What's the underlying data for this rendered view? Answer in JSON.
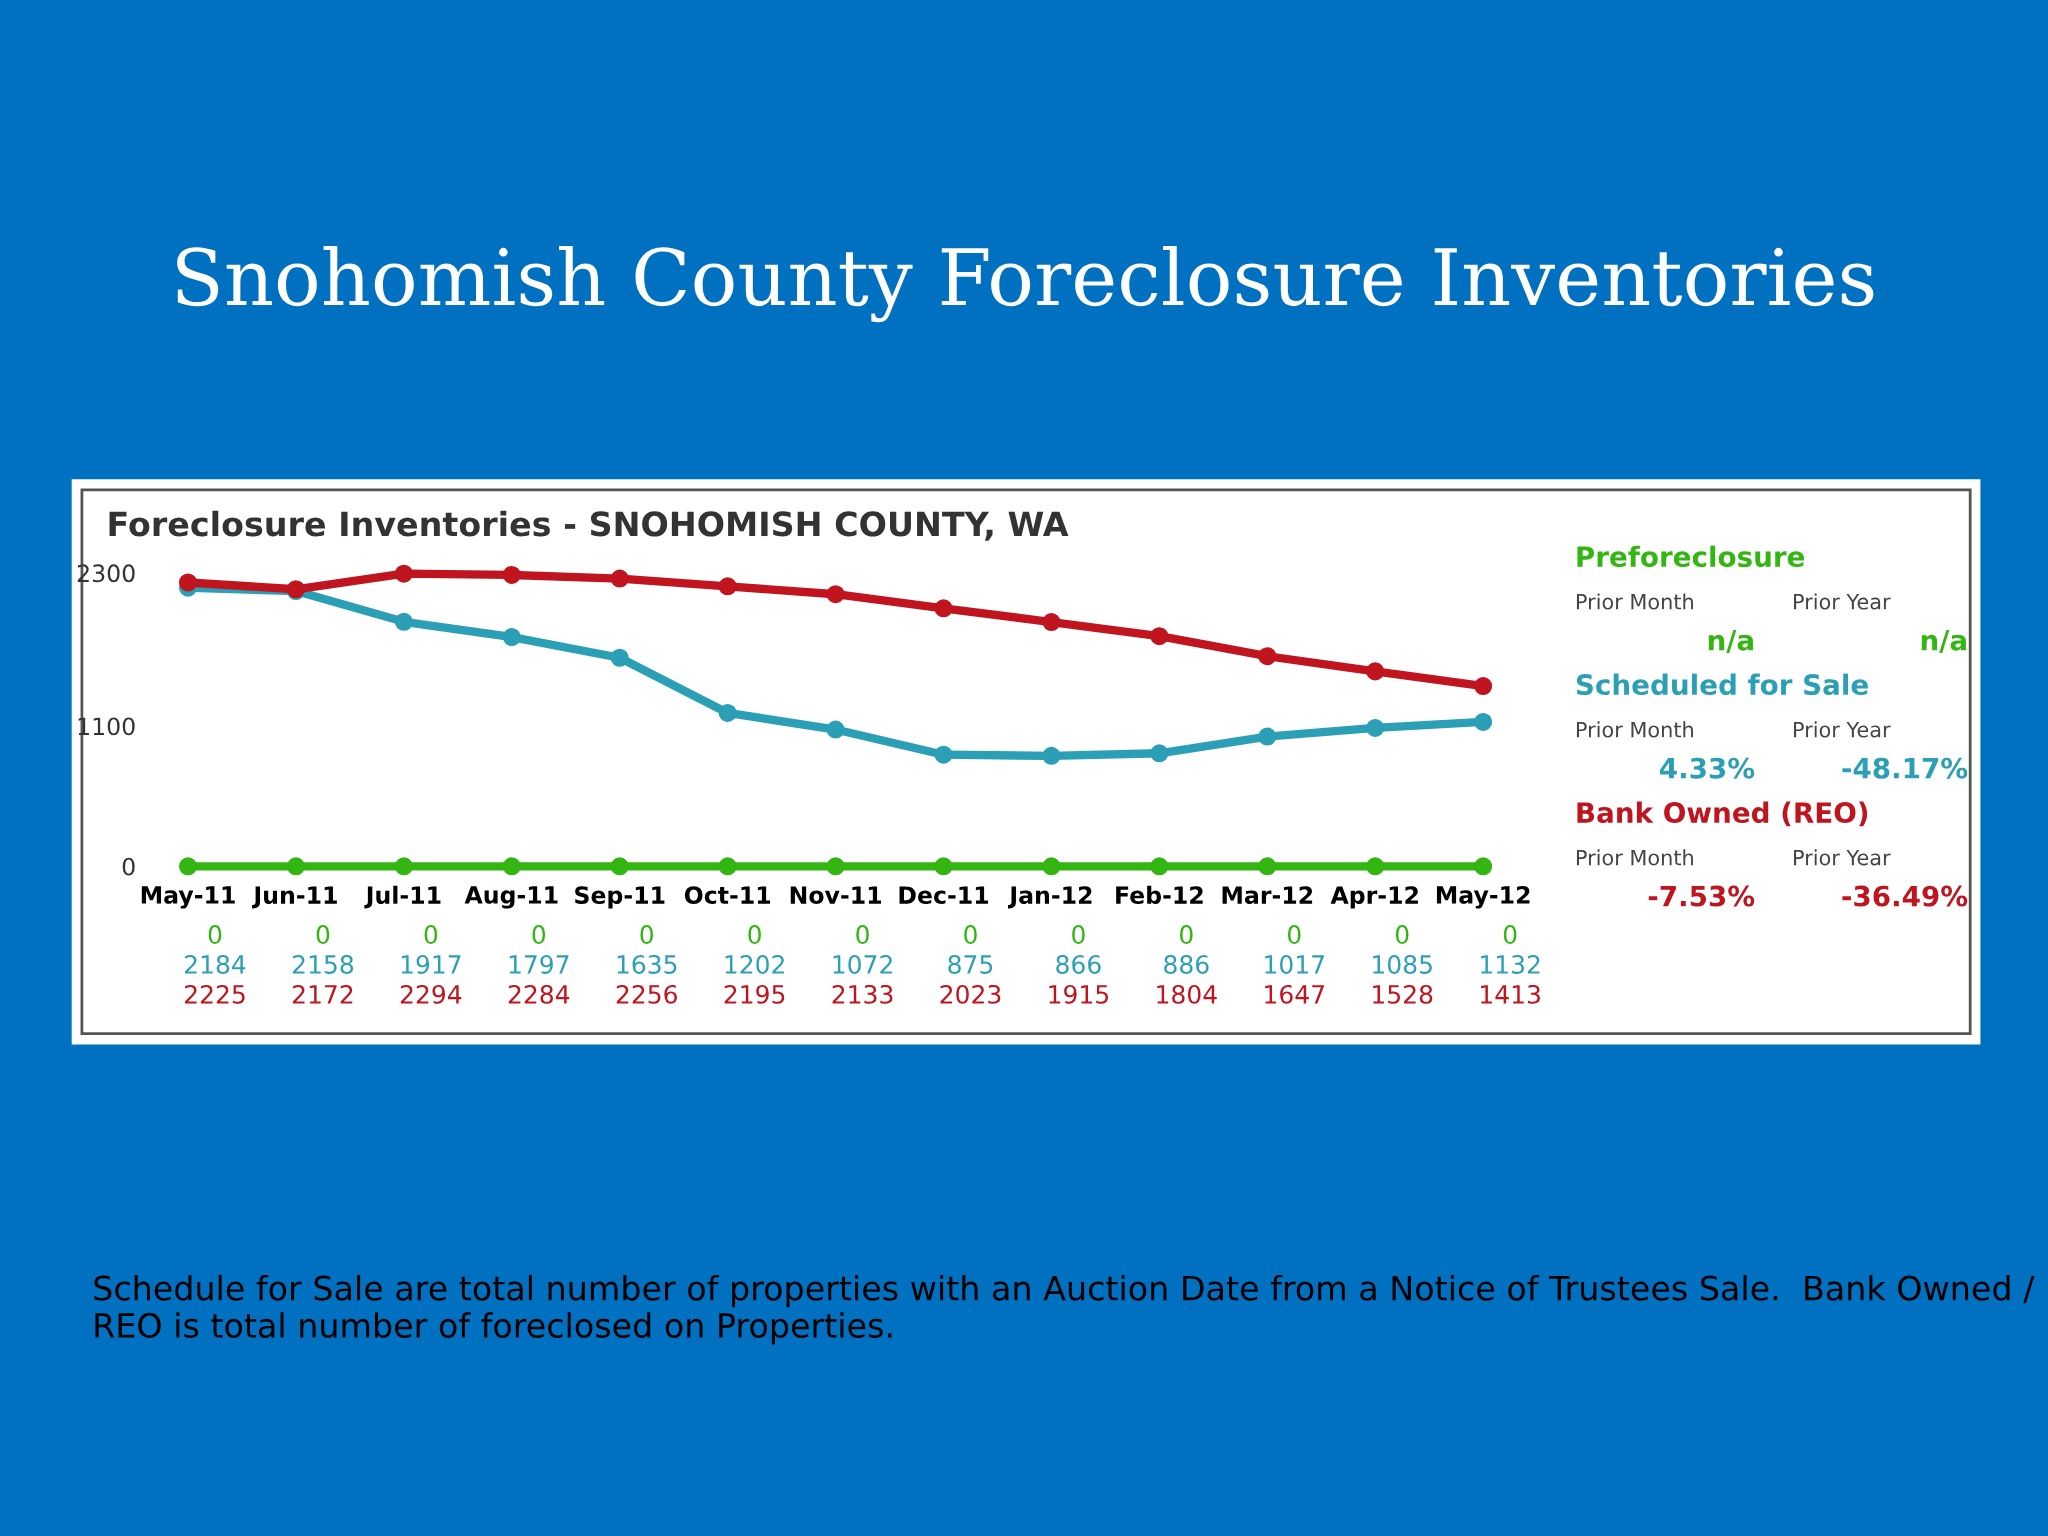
{
  "chart_data": [
    {
      "type": "line",
      "title": "Snohomish County Foreclosure Inventories",
      "subtitle": "Foreclosure Inventories - SNOHOMISH COUNTY, WA",
      "categories": [
        "May-11",
        "Jun-11",
        "Jul-11",
        "Aug-11",
        "Sep-11",
        "Oct-11",
        "Nov-11",
        "Dec-11",
        "Jan-12",
        "Feb-12",
        "Mar-12",
        "Apr-12",
        "May-12"
      ],
      "series": [
        {
          "name": "Preforeclosure",
          "color": "#33b512",
          "values": [
            0,
            0,
            0,
            0,
            0,
            0,
            0,
            0,
            0,
            0,
            0,
            0,
            0
          ]
        },
        {
          "name": "Scheduled for Sale",
          "color": "#2a9fb5",
          "values": [
            2184,
            2158,
            1917,
            1797,
            1635,
            1202,
            1072,
            875,
            866,
            886,
            1017,
            1085,
            1132
          ]
        },
        {
          "name": "Bank Owned (REO)",
          "color": "#c0141e",
          "values": [
            2225,
            2172,
            2294,
            2284,
            2256,
            2195,
            2133,
            2023,
            1915,
            1804,
            1647,
            1528,
            1413
          ]
        }
      ],
      "ylim": [
        0,
        2300
      ],
      "yticks": [
        0,
        1100,
        2300
      ],
      "marker": "circle",
      "line_style": "solid",
      "grid": false,
      "legend": false,
      "data_labels": true,
      "annotations": [
        "Schedule for Sale are total number of properties with an Auction Date from a Notice of Trustees Sale.  Bank Owned / REO is total number of foreclosed on Properties."
      ]
    },
    {
      "type": "other",
      "annotations": [
        "Prior Month",
        "Prior Year",
        "n/a",
        "n/a",
        "Prior Month",
        "Prior Year",
        "4.33%",
        "-48.17%",
        "Prior Month",
        "Prior Year",
        "-7.53%",
        "-36.49%"
      ]
    }
  ]
}
